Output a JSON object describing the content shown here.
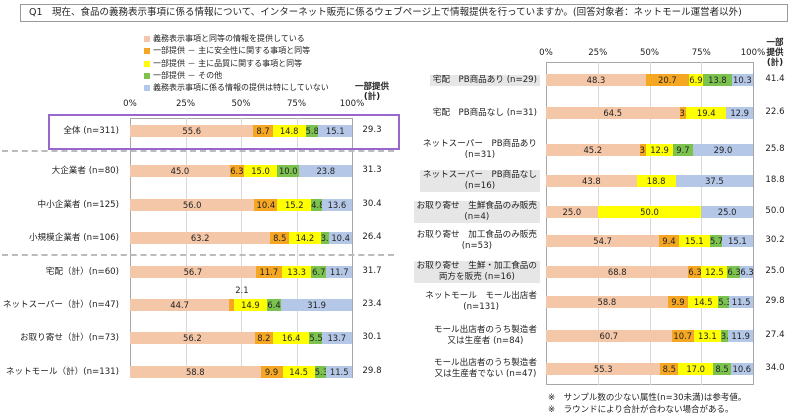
{
  "title": "Q1　現在、食品の義務表示事項に係る情報について、インターネット販売に係るウェブページ上で情報提供を行っていますか。(回答対象者：ネットモール運営者以外)",
  "legend": [
    {
      "label": "義務表示事項と同等の情報を提供している",
      "color": "#f4c7a9"
    },
    {
      "label": "一部提供 － 主に安全性に関する事項と同等",
      "color": "#f5a623"
    },
    {
      "label": "一部提供 － 主に品質に関する事項と同等",
      "color": "#ffff00"
    },
    {
      "label": "一部提供 － その他",
      "color": "#7cc24f"
    },
    {
      "label": "義務表示事項に係る情報の提供は特にしていない",
      "color": "#b4c7e7"
    }
  ],
  "notes": [
    "※　サンプル数の少ない属性(n=30未満)は参考値。",
    "※　ラウンドにより合計が合わない場合がある。"
  ],
  "chart_data": [
    {
      "type": "bar",
      "orientation": "horizontal-stacked-100",
      "xlim": [
        0,
        100
      ],
      "ticks": [
        "0%",
        "25%",
        "50%",
        "75%",
        "100%"
      ],
      "total_header": "一部提供\n(計)",
      "series_names": [
        "義務表示事項と同等の情報を提供している",
        "一部提供 － 主に安全性に関する事項と同等",
        "一部提供 － 主に品質に関する事項と同等",
        "一部提供 － その他",
        "義務表示事項に係る情報の提供は特にしていない"
      ],
      "rows": [
        {
          "label": "全体 (n=311)",
          "values": [
            55.6,
            8.7,
            14.8,
            5.8,
            15.1
          ],
          "total": "29.3",
          "highlight": true
        },
        {
          "label": "大企業者 (n=80)",
          "values": [
            45.0,
            6.3,
            15.0,
            10.0,
            23.8
          ],
          "total": "31.3"
        },
        {
          "label": "中小企業者 (n=125)",
          "values": [
            56.0,
            10.4,
            15.2,
            4.8,
            13.6
          ],
          "total": "30.4"
        },
        {
          "label": "小規模企業者 (n=106)",
          "values": [
            63.2,
            8.5,
            14.2,
            3.8,
            10.4
          ],
          "total": "26.4"
        },
        {
          "label": "宅配（計）(n=60)",
          "values": [
            56.7,
            11.7,
            13.3,
            6.7,
            11.7
          ],
          "total": "31.7"
        },
        {
          "label": "ネットスーパー（計）(n=47)",
          "values": [
            44.7,
            2.1,
            14.9,
            6.4,
            31.9
          ],
          "total": "23.4",
          "callout": "2.1"
        },
        {
          "label": "お取り寄せ（計）(n=73)",
          "values": [
            56.2,
            8.2,
            16.4,
            5.5,
            13.7
          ],
          "total": "30.1"
        },
        {
          "label": "ネットモール（計）(n=131)",
          "values": [
            58.8,
            9.9,
            14.5,
            5.3,
            11.5
          ],
          "total": "29.8"
        }
      ]
    },
    {
      "type": "bar",
      "orientation": "horizontal-stacked-100",
      "xlim": [
        0,
        100
      ],
      "ticks": [
        "0%",
        "25%",
        "50%",
        "75%",
        "100%"
      ],
      "total_header": "一部\n提供\n(計)",
      "series_names": [
        "義務表示事項と同等の情報を提供している",
        "一部提供 － 主に安全性に関する事項と同等",
        "一部提供 － 主に品質に関する事項と同等",
        "一部提供 － その他",
        "義務表示事項に係る情報の提供は特にしていない"
      ],
      "rows": [
        {
          "label": "宅配　PB商品あり (n=29)",
          "values": [
            48.3,
            20.7,
            6.9,
            13.8,
            10.3
          ],
          "total": "41.4",
          "shaded": true
        },
        {
          "label": "宅配　PB商品なし (n=31)",
          "values": [
            64.5,
            3.2,
            19.4,
            0,
            12.9
          ],
          "total": "22.6"
        },
        {
          "label": "ネットスーパー　PB商品あり\n(n=31)",
          "values": [
            45.2,
            3.2,
            12.9,
            9.7,
            29.0
          ],
          "total": "25.8"
        },
        {
          "label": "ネットスーパー　PB商品なし\n(n=16)",
          "values": [
            43.8,
            0,
            18.8,
            0,
            37.5
          ],
          "total": "18.8",
          "shaded": true
        },
        {
          "label": "お取り寄せ　生鮮食品のみ販売\n(n=4)",
          "values": [
            25.0,
            0,
            50.0,
            0,
            25.0
          ],
          "total": "50.0",
          "shaded": true
        },
        {
          "label": "お取り寄せ　加工食品のみ販売\n(n=53)",
          "values": [
            54.7,
            9.4,
            15.1,
            5.7,
            15.1
          ],
          "total": "30.2"
        },
        {
          "label": "お取り寄せ　生鮮・加工食品の\n両方を販売 (n=16)",
          "values": [
            68.8,
            6.3,
            12.5,
            6.3,
            6.3
          ],
          "total": "25.0",
          "shaded": true
        },
        {
          "label": "ネットモール　モール出店者\n(n=131)",
          "values": [
            58.8,
            9.9,
            14.5,
            5.3,
            11.5
          ],
          "total": "29.8"
        },
        {
          "label": "モール出店者のうち製造者\n又は生産者 (n=84)",
          "values": [
            60.7,
            10.7,
            13.1,
            3.6,
            11.9
          ],
          "total": "27.4"
        },
        {
          "label": "モール出店者のうち製造者\n又は生産者でない (n=47)",
          "values": [
            55.3,
            8.5,
            17.0,
            8.5,
            10.6
          ],
          "total": "34.0"
        }
      ]
    }
  ]
}
